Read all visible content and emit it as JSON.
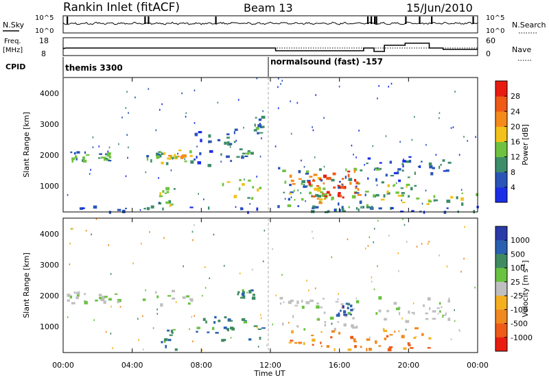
{
  "header": {
    "station": "Rankin Inlet (fitACF)",
    "beam": "Beam 13",
    "date": "15/Jun/2010"
  },
  "sky_panel": {
    "left_label": "N.Sky",
    "left_ticks": [
      "10^5",
      "10^0"
    ],
    "right_label": "N.Search",
    "right_ticks": [
      "10^5",
      "10^0"
    ]
  },
  "freq_panel": {
    "left_label_1": "Freq.",
    "left_label_2": "[MHz]",
    "left_ticks": [
      "18",
      "8"
    ],
    "right_label": "Nave",
    "right_ticks": [
      "60",
      "0"
    ]
  },
  "cpid": {
    "label": "CPID",
    "modes": [
      "themis 3300",
      "normalsound (fast) -157"
    ]
  },
  "time_axis": {
    "ticks": [
      "00:00",
      "04:00",
      "08:00",
      "12:00",
      "16:00",
      "20:00",
      "00:00"
    ],
    "label": "Time UT"
  },
  "range_axis": {
    "label": "Slant Range [km]",
    "ticks": [
      "1000",
      "2000",
      "3000",
      "4000"
    ]
  },
  "power_colorbar": {
    "label": "Power [dB]",
    "ticks": [
      "4",
      "8",
      "12",
      "16",
      "20",
      "24",
      "28"
    ],
    "colors": [
      "#1a2ee8",
      "#2a55b8",
      "#3d8c6a",
      "#6fc23f",
      "#f2c21a",
      "#f58a1a",
      "#ef5a16",
      "#e81d10"
    ]
  },
  "velocity_colorbar": {
    "label": "Velocity [m s",
    "label_sup": "-1",
    "label_end": "]",
    "ticks": [
      "1000",
      "500",
      "100",
      "25",
      "-25",
      "-100",
      "-500",
      "-1000"
    ],
    "colors": [
      "#2a3aa8",
      "#2a60b0",
      "#3f8a60",
      "#69c240",
      "#bfbfbf",
      "#f5b020",
      "#f08a20",
      "#ee5a18",
      "#e81d10"
    ]
  },
  "chart_data": [
    {
      "type": "heatmap",
      "panel": "power",
      "xlabel": "Time UT",
      "ylabel": "Slant Range [km]",
      "xlim_hours": [
        0,
        24
      ],
      "ylim_km": [
        180,
        4500
      ],
      "colorbar_range_db": [
        0,
        30
      ],
      "echo_regions": [
        {
          "t0": 0.0,
          "t1": 24.0,
          "r0": 200,
          "r1": 400,
          "level": 1
        },
        {
          "t0": 0.4,
          "t1": 1.4,
          "r0": 1850,
          "r1": 2150,
          "level": 2
        },
        {
          "t0": 2.0,
          "t1": 3.0,
          "r0": 1850,
          "r1": 2100,
          "level": 2
        },
        {
          "t0": 4.8,
          "t1": 5.6,
          "r0": 1850,
          "r1": 2150,
          "level": 2
        },
        {
          "t0": 5.6,
          "t1": 7.4,
          "r0": 1750,
          "r1": 2250,
          "level": 3
        },
        {
          "t0": 6.0,
          "t1": 7.0,
          "r0": 1900,
          "r1": 2050,
          "level": 4
        },
        {
          "t0": 5.5,
          "t1": 6.4,
          "r0": 300,
          "r1": 1050,
          "level": 3
        },
        {
          "t0": 7.5,
          "t1": 10.0,
          "r0": 1700,
          "r1": 2900,
          "level": 1
        },
        {
          "t0": 9.2,
          "t1": 11.5,
          "r0": 600,
          "r1": 1250,
          "level": 3
        },
        {
          "t0": 10.0,
          "t1": 11.0,
          "r0": 1950,
          "r1": 2250,
          "level": 2
        },
        {
          "t0": 11.0,
          "t1": 11.5,
          "r0": 2700,
          "r1": 3300,
          "level": 2
        },
        {
          "t0": 12.3,
          "t1": 18.5,
          "r0": 300,
          "r1": 1650,
          "level": 2
        },
        {
          "t0": 13.0,
          "t1": 15.5,
          "r0": 500,
          "r1": 1400,
          "level": 4
        },
        {
          "t0": 14.0,
          "t1": 17.2,
          "r0": 500,
          "r1": 1600,
          "level": 6
        },
        {
          "t0": 15.0,
          "t1": 16.6,
          "r0": 600,
          "r1": 1450,
          "level": 7
        },
        {
          "t0": 17.5,
          "t1": 20.5,
          "r0": 300,
          "r1": 1100,
          "level": 3
        },
        {
          "t0": 17.5,
          "t1": 22.5,
          "r0": 1200,
          "r1": 2000,
          "level": 1
        },
        {
          "t0": 21.0,
          "t1": 24.0,
          "r0": 400,
          "r1": 900,
          "level": 3
        }
      ]
    },
    {
      "type": "heatmap",
      "panel": "velocity",
      "xlabel": "Time UT",
      "ylabel": "Slant Range [km]",
      "xlim_hours": [
        0,
        24
      ],
      "ylim_km": [
        180,
        4500
      ],
      "colorbar_range_ms": [
        -1000,
        1000
      ],
      "echo_regions": [
        {
          "t0": 0.2,
          "t1": 1.5,
          "r0": 1800,
          "r1": 2150,
          "class": "low"
        },
        {
          "t0": 1.8,
          "t1": 3.2,
          "r0": 1850,
          "r1": 2100,
          "class": "low"
        },
        {
          "t0": 4.6,
          "t1": 7.5,
          "r0": 1750,
          "r1": 2200,
          "class": "low"
        },
        {
          "t0": 5.5,
          "t1": 6.5,
          "r0": 300,
          "r1": 1100,
          "class": "pos_mid"
        },
        {
          "t0": 7.4,
          "t1": 9.6,
          "r0": 600,
          "r1": 1400,
          "class": "pos_mid"
        },
        {
          "t0": 9.2,
          "t1": 11.5,
          "r0": 600,
          "r1": 1300,
          "class": "pos_mid"
        },
        {
          "t0": 10.0,
          "t1": 11.0,
          "r0": 1950,
          "r1": 2300,
          "class": "pos_mid"
        },
        {
          "t0": 12.5,
          "t1": 17.0,
          "r0": 900,
          "r1": 2000,
          "class": "low"
        },
        {
          "t0": 13.0,
          "t1": 17.5,
          "r0": 300,
          "r1": 900,
          "class": "neg_mid"
        },
        {
          "t0": 15.5,
          "t1": 17.0,
          "r0": 1300,
          "r1": 1800,
          "class": "pos_high"
        },
        {
          "t0": 17.5,
          "t1": 21.5,
          "r0": 300,
          "r1": 1000,
          "class": "neg_mid"
        },
        {
          "t0": 18.0,
          "t1": 22.5,
          "r0": 1200,
          "r1": 2000,
          "class": "low"
        }
      ]
    }
  ]
}
